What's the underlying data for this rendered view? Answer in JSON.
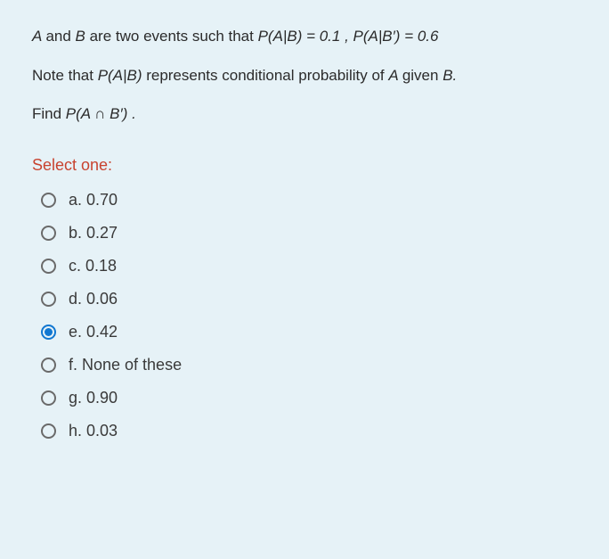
{
  "colors": {
    "card_bg": "#e6f2f7",
    "stem_text": "#2b2b2b",
    "prompt_text": "#c8432f",
    "option_text": "#3a3a3a",
    "radio_border": "#6a6a6a",
    "radio_selected": "#1177d1"
  },
  "stem": {
    "line1_pre": "A ",
    "line1_and": "and ",
    "line1_b": "B   ",
    "line1_mid": "are two events  such that  ",
    "line1_p1": " P(A|B) = 0.1 ,  P(A|B′) = 0.6",
    "line2_pre": "Note that  ",
    "line2_pab": "P(A|B)  ",
    "line2_mid": "represents conditional probability of ",
    "line2_a": "A  ",
    "line2_given": "given ",
    "line2_bdot": "B.",
    "line3_pre": "Find  ",
    "line3_expr": "P(A ∩ B′) ."
  },
  "prompt": "Select one:",
  "options": [
    {
      "key": "a",
      "label": "a. 0.70",
      "selected": false
    },
    {
      "key": "b",
      "label": "b. 0.27",
      "selected": false
    },
    {
      "key": "c",
      "label": "c. 0.18",
      "selected": false
    },
    {
      "key": "d",
      "label": "d. 0.06",
      "selected": false
    },
    {
      "key": "e",
      "label": "e. 0.42",
      "selected": true
    },
    {
      "key": "f",
      "label": "f. None of these",
      "selected": false
    },
    {
      "key": "g",
      "label": "g. 0.90",
      "selected": false
    },
    {
      "key": "h",
      "label": "h. 0.03",
      "selected": false
    }
  ]
}
